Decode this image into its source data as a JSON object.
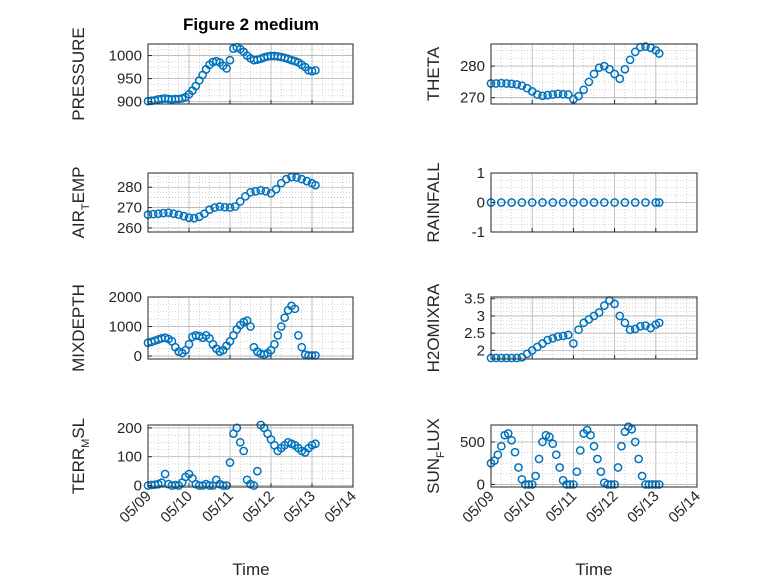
{
  "figure": {
    "title": "Figure 2 medium",
    "xlabel": "Time"
  },
  "x_ticks": [
    "05/09",
    "05/10",
    "05/11",
    "05/12",
    "05/13",
    "05/14"
  ],
  "colors": {
    "marker": "#0072BD",
    "axis": "#262626",
    "grid": "#b4b4b4",
    "background": "#ffffff"
  },
  "chart_data": [
    {
      "type": "scatter",
      "ylabel": "PRESSURE",
      "ylim": [
        895,
        1025
      ],
      "yticks": [
        900,
        950,
        1000
      ],
      "ytick_labels": [
        "900",
        "950",
        "1000"
      ],
      "grid": true,
      "marker": "open circle",
      "x": [
        "05/09 00:00",
        "05/09 02:00",
        "05/09 04:00",
        "05/09 06:00",
        "05/09 08:00",
        "05/09 10:00",
        "05/09 12:00",
        "05/09 14:00",
        "05/09 16:00",
        "05/09 18:00",
        "05/09 20:00",
        "05/09 22:00",
        "05/10 00:00",
        "05/10 02:00",
        "05/10 04:00",
        "05/10 06:00",
        "05/10 08:00",
        "05/10 10:00",
        "05/10 12:00",
        "05/10 14:00",
        "05/10 16:00",
        "05/10 18:00",
        "05/10 20:00",
        "05/10 22:00",
        "05/11 00:00",
        "05/11 02:00",
        "05/11 04:00",
        "05/11 06:00",
        "05/11 08:00",
        "05/11 10:00",
        "05/11 12:00",
        "05/11 14:00",
        "05/11 16:00",
        "05/11 18:00",
        "05/11 20:00",
        "05/11 22:00",
        "05/12 00:00",
        "05/12 02:00",
        "05/12 04:00",
        "05/12 06:00",
        "05/12 08:00",
        "05/12 10:00",
        "05/12 12:00",
        "05/12 14:00",
        "05/12 16:00",
        "05/12 18:00",
        "05/12 20:00",
        "05/12 22:00",
        "05/13 00:00",
        "05/13 02:00"
      ],
      "y": [
        901,
        902,
        903,
        905,
        906,
        907,
        906,
        905,
        906,
        906,
        907,
        910,
        916,
        924,
        934,
        946,
        958,
        970,
        980,
        986,
        988,
        985,
        978,
        972,
        990,
        1015,
        1018,
        1014,
        1008,
        1000,
        994,
        990,
        991,
        993,
        996,
        998,
        999,
        999,
        998,
        997,
        995,
        993,
        990,
        988,
        985,
        980,
        975,
        968,
        966,
        968
      ]
    },
    {
      "type": "scatter",
      "ylabel": "THETA",
      "ylim": [
        268,
        287
      ],
      "yticks": [
        270,
        280
      ],
      "ytick_labels": [
        "270",
        "280"
      ],
      "grid": true,
      "marker": "open circle",
      "x": [
        "05/09 00:00",
        "05/09 03:00",
        "05/09 06:00",
        "05/09 09:00",
        "05/09 12:00",
        "05/09 15:00",
        "05/09 18:00",
        "05/09 21:00",
        "05/10 00:00",
        "05/10 03:00",
        "05/10 06:00",
        "05/10 09:00",
        "05/10 12:00",
        "05/10 15:00",
        "05/10 18:00",
        "05/10 21:00",
        "05/11 00:00",
        "05/11 03:00",
        "05/11 06:00",
        "05/11 09:00",
        "05/11 12:00",
        "05/11 15:00",
        "05/11 18:00",
        "05/11 21:00",
        "05/12 00:00",
        "05/12 03:00",
        "05/12 06:00",
        "05/12 09:00",
        "05/12 12:00",
        "05/12 15:00",
        "05/12 18:00",
        "05/12 21:00",
        "05/13 00:00",
        "05/13 02:00"
      ],
      "y": [
        274.5,
        274.5,
        274.6,
        274.5,
        274.4,
        274.2,
        273.8,
        273,
        272,
        271,
        270.6,
        270.8,
        271,
        271.2,
        271.1,
        271,
        269.5,
        270.5,
        272.5,
        275,
        277.5,
        279.5,
        280,
        279,
        277.5,
        276,
        279,
        282,
        284.5,
        286,
        286.2,
        285.8,
        285,
        284
      ]
    },
    {
      "type": "scatter",
      "ylabel": "AIR_TEMP",
      "ylabel_main": "AIR",
      "ylabel_sub": "T",
      "ylabel_tail": "EMP",
      "ylim": [
        258,
        287
      ],
      "yticks": [
        260,
        270,
        280
      ],
      "ytick_labels": [
        "260",
        "270",
        "280"
      ],
      "grid": true,
      "marker": "open circle",
      "x": [
        "05/09 00:00",
        "05/09 03:00",
        "05/09 06:00",
        "05/09 09:00",
        "05/09 12:00",
        "05/09 15:00",
        "05/09 18:00",
        "05/09 21:00",
        "05/10 00:00",
        "05/10 03:00",
        "05/10 06:00",
        "05/10 09:00",
        "05/10 12:00",
        "05/10 15:00",
        "05/10 18:00",
        "05/10 21:00",
        "05/11 00:00",
        "05/11 03:00",
        "05/11 06:00",
        "05/11 09:00",
        "05/11 12:00",
        "05/11 15:00",
        "05/11 18:00",
        "05/11 21:00",
        "05/12 00:00",
        "05/12 03:00",
        "05/12 06:00",
        "05/12 09:00",
        "05/12 12:00",
        "05/12 15:00",
        "05/12 18:00",
        "05/12 21:00",
        "05/13 00:00",
        "05/13 02:00"
      ],
      "y": [
        266.5,
        266.8,
        267,
        267.3,
        267.5,
        267,
        266.5,
        265.8,
        265,
        264.8,
        265.5,
        267,
        269,
        270,
        270.5,
        270.2,
        270,
        270.5,
        273,
        275.5,
        277.5,
        278,
        278.5,
        278,
        277,
        279,
        282,
        284,
        285,
        284.8,
        284,
        283,
        282,
        281
      ]
    },
    {
      "type": "scatter",
      "ylabel": "RAINFALL",
      "ylim": [
        -1,
        1
      ],
      "yticks": [
        -1,
        0,
        1
      ],
      "ytick_labels": [
        "-1",
        "0",
        "1"
      ],
      "grid": true,
      "marker": "open circle",
      "x": [
        "05/09 00:00",
        "05/09 06:00",
        "05/09 12:00",
        "05/09 18:00",
        "05/10 00:00",
        "05/10 06:00",
        "05/10 12:00",
        "05/10 18:00",
        "05/11 00:00",
        "05/11 06:00",
        "05/11 12:00",
        "05/11 18:00",
        "05/12 00:00",
        "05/12 06:00",
        "05/12 12:00",
        "05/12 18:00",
        "05/13 00:00",
        "05/13 02:00"
      ],
      "y": [
        0,
        0,
        0,
        0,
        0,
        0,
        0,
        0,
        0,
        0,
        0,
        0,
        0,
        0,
        0,
        0,
        0,
        0
      ]
    },
    {
      "type": "scatter",
      "ylabel": "MIXDEPTH",
      "ylim": [
        -100,
        2000
      ],
      "yticks": [
        0,
        1000,
        2000
      ],
      "ytick_labels": [
        "0",
        "1000",
        "2000"
      ],
      "grid": true,
      "marker": "open circle",
      "x": [
        "05/09 00:00",
        "05/09 02:00",
        "05/09 04:00",
        "05/09 06:00",
        "05/09 08:00",
        "05/09 10:00",
        "05/09 12:00",
        "05/09 14:00",
        "05/09 16:00",
        "05/09 18:00",
        "05/09 20:00",
        "05/09 22:00",
        "05/10 00:00",
        "05/10 02:00",
        "05/10 04:00",
        "05/10 06:00",
        "05/10 08:00",
        "05/10 10:00",
        "05/10 12:00",
        "05/10 14:00",
        "05/10 16:00",
        "05/10 18:00",
        "05/10 20:00",
        "05/10 22:00",
        "05/11 00:00",
        "05/11 02:00",
        "05/11 04:00",
        "05/11 06:00",
        "05/11 08:00",
        "05/11 10:00",
        "05/11 12:00",
        "05/11 14:00",
        "05/11 16:00",
        "05/11 18:00",
        "05/11 20:00",
        "05/11 22:00",
        "05/12 00:00",
        "05/12 02:00",
        "05/12 04:00",
        "05/12 06:00",
        "05/12 08:00",
        "05/12 10:00",
        "05/12 12:00",
        "05/12 14:00",
        "05/12 16:00",
        "05/12 18:00",
        "05/12 20:00",
        "05/12 22:00",
        "05/13 00:00",
        "05/13 02:00"
      ],
      "y": [
        450,
        480,
        520,
        560,
        600,
        620,
        580,
        500,
        300,
        150,
        100,
        200,
        400,
        650,
        700,
        680,
        620,
        700,
        600,
        400,
        250,
        150,
        200,
        350,
        500,
        700,
        900,
        1050,
        1150,
        1200,
        1000,
        300,
        150,
        80,
        50,
        100,
        200,
        400,
        700,
        1000,
        1300,
        1550,
        1700,
        1600,
        700,
        300,
        50,
        20,
        20,
        20
      ]
    },
    {
      "type": "scatter",
      "ylabel": "H2OMIXRA",
      "ylim": [
        1.75,
        3.55
      ],
      "yticks": [
        2,
        2.5,
        3,
        3.5
      ],
      "ytick_labels": [
        "2",
        "2.5",
        "3",
        "3.5"
      ],
      "grid": true,
      "marker": "open circle",
      "x": [
        "05/09 00:00",
        "05/09 03:00",
        "05/09 06:00",
        "05/09 09:00",
        "05/09 12:00",
        "05/09 15:00",
        "05/09 18:00",
        "05/09 21:00",
        "05/10 00:00",
        "05/10 03:00",
        "05/10 06:00",
        "05/10 09:00",
        "05/10 12:00",
        "05/10 15:00",
        "05/10 18:00",
        "05/10 21:00",
        "05/11 00:00",
        "05/11 03:00",
        "05/11 06:00",
        "05/11 09:00",
        "05/11 12:00",
        "05/11 15:00",
        "05/11 18:00",
        "05/11 21:00",
        "05/12 00:00",
        "05/12 03:00",
        "05/12 06:00",
        "05/12 09:00",
        "05/12 12:00",
        "05/12 15:00",
        "05/12 18:00",
        "05/12 21:00",
        "05/13 00:00",
        "05/13 02:00"
      ],
      "y": [
        1.78,
        1.78,
        1.78,
        1.78,
        1.78,
        1.78,
        1.8,
        1.9,
        2.0,
        2.1,
        2.2,
        2.3,
        2.35,
        2.4,
        2.42,
        2.45,
        2.2,
        2.6,
        2.8,
        2.9,
        3.0,
        3.1,
        3.3,
        3.45,
        3.35,
        3.0,
        2.8,
        2.6,
        2.62,
        2.7,
        2.72,
        2.65,
        2.75,
        2.8
      ]
    },
    {
      "type": "scatter",
      "ylabel": "TERR_MSL",
      "ylabel_main": "TERR",
      "ylabel_sub": "M",
      "ylabel_tail": "SL",
      "ylim": [
        -5,
        210
      ],
      "yticks": [
        0,
        100,
        200
      ],
      "ytick_labels": [
        "0",
        "100",
        "200"
      ],
      "grid": true,
      "marker": "open circle",
      "x": [
        "05/09 00:00",
        "05/09 02:00",
        "05/09 04:00",
        "05/09 06:00",
        "05/09 08:00",
        "05/09 10:00",
        "05/09 12:00",
        "05/09 14:00",
        "05/09 16:00",
        "05/09 18:00",
        "05/09 20:00",
        "05/09 22:00",
        "05/10 00:00",
        "05/10 02:00",
        "05/10 04:00",
        "05/10 06:00",
        "05/10 08:00",
        "05/10 10:00",
        "05/10 12:00",
        "05/10 14:00",
        "05/10 16:00",
        "05/10 18:00",
        "05/10 20:00",
        "05/10 22:00",
        "05/11 00:00",
        "05/11 02:00",
        "05/11 04:00",
        "05/11 06:00",
        "05/11 08:00",
        "05/11 10:00",
        "05/11 12:00",
        "05/11 14:00",
        "05/11 16:00",
        "05/11 18:00",
        "05/11 20:00",
        "05/11 22:00",
        "05/12 00:00",
        "05/12 02:00",
        "05/12 04:00",
        "05/12 06:00",
        "05/12 08:00",
        "05/12 10:00",
        "05/12 12:00",
        "05/12 14:00",
        "05/12 16:00",
        "05/12 18:00",
        "05/12 20:00",
        "05/12 22:00",
        "05/13 00:00",
        "05/13 02:00"
      ],
      "y": [
        0,
        2,
        3,
        5,
        10,
        40,
        5,
        0,
        2,
        0,
        10,
        30,
        40,
        25,
        5,
        0,
        0,
        5,
        0,
        0,
        20,
        5,
        0,
        0,
        80,
        180,
        200,
        150,
        120,
        20,
        5,
        0,
        50,
        210,
        200,
        180,
        160,
        140,
        120,
        130,
        140,
        150,
        145,
        140,
        130,
        120,
        115,
        130,
        140,
        145
      ]
    },
    {
      "type": "scatter",
      "ylabel": "SUN_FLUX",
      "ylabel_main": "SUN",
      "ylabel_sub": "F",
      "ylabel_tail": "LUX",
      "ylim": [
        -30,
        700
      ],
      "yticks": [
        0,
        500
      ],
      "ytick_labels": [
        "0",
        "500"
      ],
      "grid": true,
      "marker": "open circle",
      "x": [
        "05/09 00:00",
        "05/09 02:00",
        "05/09 04:00",
        "05/09 06:00",
        "05/09 08:00",
        "05/09 10:00",
        "05/09 12:00",
        "05/09 14:00",
        "05/09 16:00",
        "05/09 18:00",
        "05/09 20:00",
        "05/09 22:00",
        "05/10 00:00",
        "05/10 02:00",
        "05/10 04:00",
        "05/10 06:00",
        "05/10 08:00",
        "05/10 10:00",
        "05/10 12:00",
        "05/10 14:00",
        "05/10 16:00",
        "05/10 18:00",
        "05/10 20:00",
        "05/10 22:00",
        "05/11 00:00",
        "05/11 02:00",
        "05/11 04:00",
        "05/11 06:00",
        "05/11 08:00",
        "05/11 10:00",
        "05/11 12:00",
        "05/11 14:00",
        "05/11 16:00",
        "05/11 18:00",
        "05/11 20:00",
        "05/11 22:00",
        "05/12 00:00",
        "05/12 02:00",
        "05/12 04:00",
        "05/12 06:00",
        "05/12 08:00",
        "05/12 10:00",
        "05/12 12:00",
        "05/12 14:00",
        "05/12 16:00",
        "05/12 18:00",
        "05/12 20:00",
        "05/12 22:00",
        "05/13 00:00",
        "05/13 02:00"
      ],
      "y": [
        250,
        280,
        350,
        450,
        580,
        600,
        520,
        380,
        200,
        60,
        0,
        0,
        0,
        100,
        300,
        500,
        580,
        560,
        480,
        350,
        200,
        50,
        0,
        0,
        0,
        150,
        400,
        600,
        640,
        580,
        450,
        300,
        150,
        20,
        0,
        0,
        0,
        200,
        450,
        620,
        680,
        650,
        500,
        300,
        100,
        0,
        0,
        0,
        0,
        0
      ]
    }
  ]
}
